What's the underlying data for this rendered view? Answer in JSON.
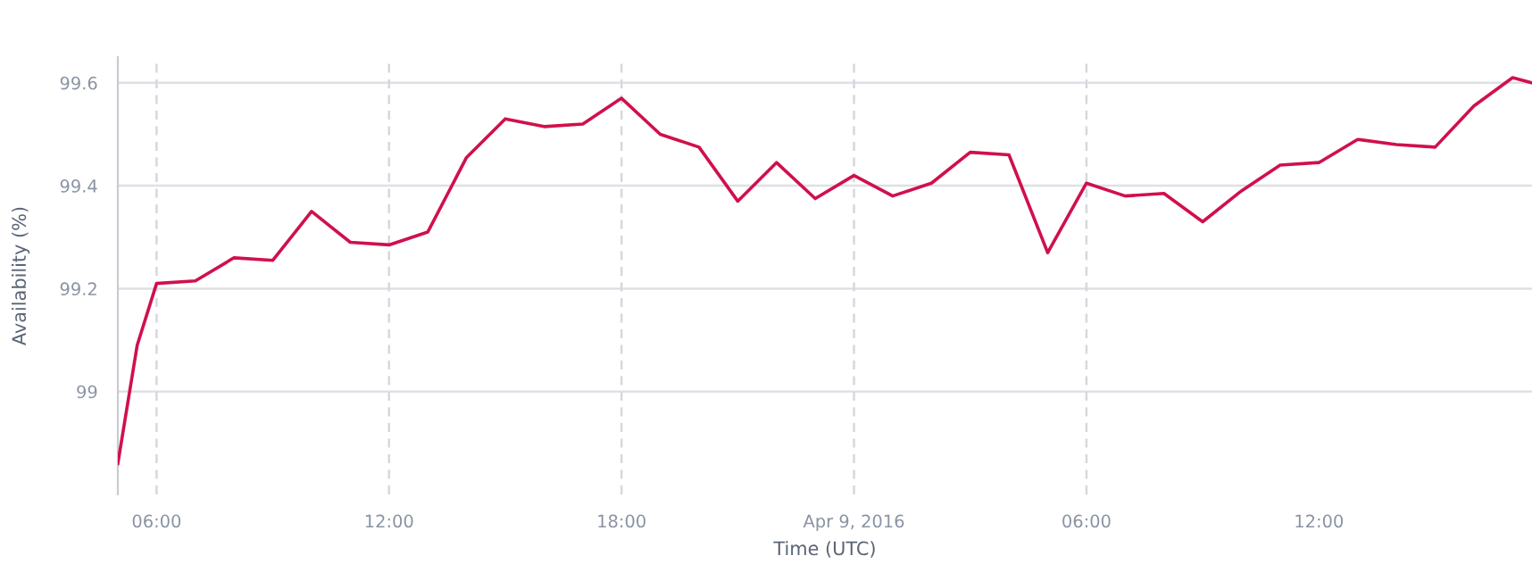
{
  "chart_data": {
    "type": "line",
    "xlabel": "Time (UTC)",
    "ylabel": "Availability (%)",
    "x": [
      "2016-04-08T05:00",
      "2016-04-08T05:30",
      "2016-04-08T06:00",
      "2016-04-08T07:00",
      "2016-04-08T08:00",
      "2016-04-08T09:00",
      "2016-04-08T10:00",
      "2016-04-08T11:00",
      "2016-04-08T12:00",
      "2016-04-08T13:00",
      "2016-04-08T14:00",
      "2016-04-08T15:00",
      "2016-04-08T16:00",
      "2016-04-08T17:00",
      "2016-04-08T18:00",
      "2016-04-08T19:00",
      "2016-04-08T20:00",
      "2016-04-08T21:00",
      "2016-04-08T22:00",
      "2016-04-08T23:00",
      "2016-04-09T00:00",
      "2016-04-09T01:00",
      "2016-04-09T02:00",
      "2016-04-09T03:00",
      "2016-04-09T04:00",
      "2016-04-09T05:00",
      "2016-04-09T06:00",
      "2016-04-09T07:00",
      "2016-04-09T08:00",
      "2016-04-09T09:00",
      "2016-04-09T10:00",
      "2016-04-09T11:00",
      "2016-04-09T12:00",
      "2016-04-09T13:00",
      "2016-04-09T14:00",
      "2016-04-09T15:00",
      "2016-04-09T16:00",
      "2016-04-09T17:00",
      "2016-04-09T17:30"
    ],
    "series": [
      {
        "color": "#d0104c",
        "values": [
          98.86,
          99.09,
          99.21,
          99.215,
          99.26,
          99.255,
          99.35,
          99.29,
          99.285,
          99.31,
          99.455,
          99.53,
          99.515,
          99.52,
          99.57,
          99.5,
          99.475,
          99.37,
          99.445,
          99.375,
          99.42,
          99.38,
          99.405,
          99.465,
          99.46,
          99.27,
          99.405,
          99.38,
          99.385,
          99.33,
          99.39,
          99.44,
          99.445,
          99.49,
          99.48,
          99.475,
          99.555,
          99.61,
          99.6
        ]
      }
    ],
    "xlim": [
      "2016-04-08T05:00",
      "2016-04-09T17:30"
    ],
    "xticks": [
      {
        "value": "2016-04-08T06:00",
        "label": "06:00"
      },
      {
        "value": "2016-04-08T12:00",
        "label": "12:00"
      },
      {
        "value": "2016-04-08T18:00",
        "label": "18:00"
      },
      {
        "value": "2016-04-09T00:00",
        "label": "Apr 9, 2016"
      },
      {
        "value": "2016-04-09T06:00",
        "label": "06:00"
      },
      {
        "value": "2016-04-09T12:00",
        "label": "12:00"
      }
    ],
    "ylim": [
      98.8,
      99.65
    ],
    "yticks": [
      {
        "value": 99,
        "label": "99"
      },
      99.2,
      99.4,
      99.6
    ],
    "grid": "y",
    "legend": false,
    "marker": "none",
    "line_style": "solid",
    "ref_lines": [
      {
        "axis": "x",
        "value": "2016-04-08T06:00",
        "color": "#d5d8dd",
        "line_style": "dashed"
      },
      {
        "axis": "x",
        "value": "2016-04-08T12:00",
        "color": "#d5d8dd",
        "line_style": "dashed"
      },
      {
        "axis": "x",
        "value": "2016-04-08T18:00",
        "color": "#d5d8dd",
        "line_style": "dashed"
      },
      {
        "axis": "x",
        "value": "2016-04-09T00:00",
        "color": "#d5d8dd",
        "line_style": "dashed"
      },
      {
        "axis": "x",
        "value": "2016-04-09T06:00",
        "color": "#d5d8dd",
        "line_style": "dashed"
      }
    ]
  }
}
